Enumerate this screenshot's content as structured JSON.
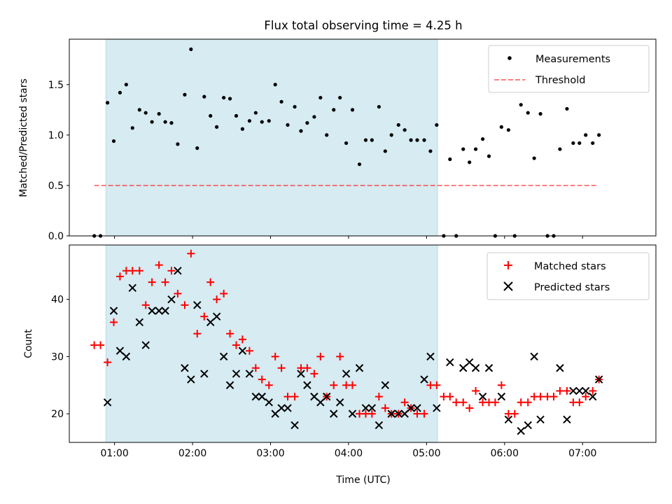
{
  "figure_title": "Flux total observing time = 4.25 h",
  "x_axis": {
    "label": "Time (UTC)",
    "range_hours": [
      0.42,
      7.94
    ],
    "ticks": [
      {
        "value": 1,
        "label": "01:00"
      },
      {
        "value": 2,
        "label": "02:00"
      },
      {
        "value": 3,
        "label": "03:00"
      },
      {
        "value": 4,
        "label": "04:00"
      },
      {
        "value": 5,
        "label": "05:00"
      },
      {
        "value": 6,
        "label": "06:00"
      },
      {
        "value": 7,
        "label": "07:00"
      }
    ]
  },
  "shaded_interval_hours": [
    0.89,
    5.14
  ],
  "colors": {
    "shade": "#add8e6",
    "measurements": "#000000",
    "threshold": "#ff0000",
    "matched": "#ff0000",
    "predicted": "#000000"
  },
  "chart_data": [
    {
      "type": "scatter",
      "ylabel": "Matched/Predicted stars",
      "ylim": [
        0,
        1.95
      ],
      "yticks": [
        {
          "value": 0,
          "label": "0.0"
        },
        {
          "value": 0.5,
          "label": "0.5"
        },
        {
          "value": 1.0,
          "label": "1.0"
        },
        {
          "value": 1.5,
          "label": "1.5"
        }
      ],
      "legend_position": "top-right",
      "threshold": {
        "name": "Threshold",
        "y": 0.5,
        "x_range": [
          0.74,
          7.2
        ],
        "style": "dashed"
      },
      "series": [
        {
          "name": "Measurements",
          "marker": "dot",
          "x": [
            0.74,
            0.82,
            0.91,
            0.99,
            1.07,
            1.15,
            1.23,
            1.32,
            1.4,
            1.48,
            1.57,
            1.65,
            1.73,
            1.81,
            1.9,
            1.98,
            2.06,
            2.15,
            2.23,
            2.31,
            2.4,
            2.48,
            2.56,
            2.64,
            2.73,
            2.81,
            2.89,
            2.98,
            3.06,
            3.14,
            3.22,
            3.31,
            3.39,
            3.47,
            3.56,
            3.64,
            3.72,
            3.81,
            3.89,
            3.97,
            4.05,
            4.14,
            4.22,
            4.3,
            4.39,
            4.47,
            4.55,
            4.64,
            4.72,
            4.8,
            4.88,
            4.97,
            5.05,
            5.13,
            5.22,
            5.3,
            5.38,
            5.47,
            5.55,
            5.63,
            5.72,
            5.8,
            5.88,
            5.96,
            6.05,
            6.13,
            6.21,
            6.3,
            6.38,
            6.46,
            6.55,
            6.63,
            6.71,
            6.8,
            6.88,
            6.96,
            7.04,
            7.13,
            7.21
          ],
          "y": [
            0,
            0,
            1.32,
            0.94,
            1.42,
            1.5,
            1.07,
            1.25,
            1.22,
            1.13,
            1.21,
            1.13,
            1.12,
            0.91,
            1.4,
            1.85,
            0.87,
            1.38,
            1.19,
            1.08,
            1.37,
            1.36,
            1.19,
            1.06,
            1.14,
            1.22,
            1.13,
            1.14,
            1.5,
            1.33,
            1.1,
            1.28,
            1.04,
            1.12,
            1.18,
            1.37,
            1.0,
            1.25,
            1.37,
            0.92,
            1.25,
            0.71,
            0.95,
            0.95,
            1.28,
            0.84,
            1.0,
            1.1,
            1.05,
            0.95,
            0.95,
            0.95,
            0.84,
            1.1,
            0,
            0.76,
            0,
            0.86,
            0.73,
            0.86,
            0.96,
            0.79,
            0,
            1.08,
            1.05,
            0,
            1.3,
            1.22,
            0.77,
            1.21,
            0,
            0,
            0.86,
            1.26,
            0.92,
            0.92,
            1.0,
            0.92,
            1.0
          ]
        }
      ]
    },
    {
      "type": "scatter",
      "ylabel": "Count",
      "ylim": [
        15,
        49.5
      ],
      "yticks": [
        {
          "value": 20,
          "label": "20"
        },
        {
          "value": 30,
          "label": "30"
        },
        {
          "value": 40,
          "label": "40"
        }
      ],
      "legend_position": "top-right",
      "series": [
        {
          "name": "Matched stars",
          "marker": "plus",
          "x": [
            0.74,
            0.82,
            0.91,
            0.99,
            1.07,
            1.15,
            1.23,
            1.32,
            1.4,
            1.48,
            1.57,
            1.65,
            1.73,
            1.81,
            1.9,
            1.98,
            2.06,
            2.15,
            2.23,
            2.31,
            2.4,
            2.48,
            2.56,
            2.64,
            2.73,
            2.81,
            2.89,
            2.98,
            3.06,
            3.14,
            3.22,
            3.31,
            3.39,
            3.47,
            3.56,
            3.64,
            3.72,
            3.81,
            3.89,
            3.97,
            4.05,
            4.14,
            4.22,
            4.3,
            4.39,
            4.47,
            4.55,
            4.64,
            4.72,
            4.8,
            4.88,
            4.97,
            5.05,
            5.13,
            5.22,
            5.3,
            5.38,
            5.47,
            5.55,
            5.63,
            5.72,
            5.8,
            5.88,
            5.96,
            6.05,
            6.13,
            6.21,
            6.3,
            6.38,
            6.46,
            6.55,
            6.63,
            6.71,
            6.8,
            6.88,
            6.96,
            7.04,
            7.13,
            7.21
          ],
          "y": [
            32,
            32,
            29,
            36,
            44,
            45,
            45,
            45,
            39,
            43,
            46,
            43,
            45,
            41,
            39,
            48,
            34,
            37,
            43,
            40,
            41,
            34,
            32,
            33,
            31,
            28,
            26,
            25,
            30,
            28,
            23,
            23,
            28,
            28,
            27,
            30,
            23,
            25,
            30,
            25,
            25,
            20,
            20,
            20,
            23,
            21,
            20,
            20,
            22,
            21,
            20,
            20,
            25,
            25,
            23,
            23,
            22,
            22,
            21,
            24,
            22,
            22,
            22,
            25,
            20,
            20,
            22,
            22,
            23,
            23,
            23,
            23,
            24,
            24,
            22,
            22,
            23,
            24,
            26
          ]
        },
        {
          "name": "Predicted stars",
          "marker": "x",
          "x": [
            0.91,
            0.99,
            1.07,
            1.15,
            1.23,
            1.32,
            1.4,
            1.48,
            1.57,
            1.65,
            1.73,
            1.81,
            1.9,
            1.98,
            2.06,
            2.15,
            2.23,
            2.31,
            2.4,
            2.48,
            2.56,
            2.64,
            2.73,
            2.81,
            2.89,
            2.98,
            3.06,
            3.14,
            3.22,
            3.31,
            3.39,
            3.47,
            3.56,
            3.64,
            3.72,
            3.81,
            3.89,
            3.97,
            4.05,
            4.14,
            4.22,
            4.3,
            4.39,
            4.47,
            4.55,
            4.64,
            4.72,
            4.8,
            4.88,
            4.97,
            5.05,
            5.13,
            5.3,
            5.47,
            5.55,
            5.63,
            5.72,
            5.8,
            5.96,
            6.05,
            6.21,
            6.3,
            6.38,
            6.46,
            6.71,
            6.8,
            6.88,
            6.96,
            7.04,
            7.13,
            7.21
          ],
          "y": [
            22,
            38,
            31,
            30,
            42,
            36,
            32,
            38,
            38,
            38,
            40,
            45,
            28,
            26,
            39,
            27,
            36,
            37,
            30,
            25,
            27,
            31,
            27,
            23,
            23,
            22,
            20,
            21,
            21,
            18,
            27,
            25,
            23,
            22,
            23,
            20,
            22,
            27,
            20,
            28,
            21,
            21,
            18,
            25,
            20,
            20,
            20,
            21,
            21,
            26,
            30,
            21,
            29,
            28,
            29,
            28,
            23,
            28,
            23,
            19,
            17,
            18,
            30,
            19,
            28,
            19,
            24,
            24,
            24,
            23,
            26
          ]
        }
      ]
    }
  ]
}
